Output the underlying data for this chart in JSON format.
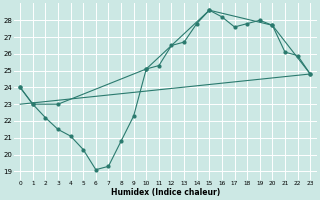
{
  "xlabel": "Humidex (Indice chaleur)",
  "bg_color": "#cce8e4",
  "line_color": "#2a7a6e",
  "grid_color": "#ffffff",
  "xlim": [
    -0.5,
    23.5
  ],
  "ylim": [
    18.5,
    29.0
  ],
  "yticks": [
    19,
    20,
    21,
    22,
    23,
    24,
    25,
    26,
    27,
    28
  ],
  "xticks": [
    0,
    1,
    2,
    3,
    4,
    5,
    6,
    7,
    8,
    9,
    10,
    11,
    12,
    13,
    14,
    15,
    16,
    17,
    18,
    19,
    20,
    21,
    22,
    23
  ],
  "line1_x": [
    0,
    1,
    2,
    3,
    4,
    5,
    6,
    7,
    8,
    9,
    10,
    11,
    12,
    13,
    14,
    15,
    16,
    17,
    18,
    19,
    20,
    21,
    22,
    23
  ],
  "line1_y": [
    24.0,
    23.0,
    22.2,
    21.5,
    21.1,
    20.3,
    19.1,
    19.3,
    20.8,
    22.3,
    25.1,
    25.3,
    26.5,
    26.7,
    27.8,
    28.6,
    28.2,
    27.6,
    27.8,
    28.0,
    27.7,
    26.1,
    25.9,
    24.8
  ],
  "line2_x": [
    0,
    1,
    3,
    10,
    15,
    20,
    23
  ],
  "line2_y": [
    24.0,
    23.0,
    23.0,
    25.1,
    28.6,
    27.7,
    24.8
  ],
  "line3_x": [
    0,
    23
  ],
  "line3_y": [
    23.0,
    24.8
  ]
}
